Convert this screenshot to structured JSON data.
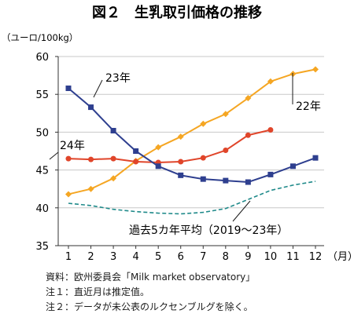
{
  "chart_data": {
    "type": "line",
    "title": "図２　生乳取引価格の推移",
    "ylabel": "（ユーロ/100kg）",
    "xunit": "（月）",
    "x": [
      1,
      2,
      3,
      4,
      5,
      6,
      7,
      8,
      9,
      10,
      11,
      12
    ],
    "ylim": [
      35,
      60
    ],
    "yticks": [
      35,
      40,
      45,
      50,
      55,
      60
    ],
    "grid": "horizontal",
    "series": [
      {
        "name": "23年",
        "color": "#2e3f8f",
        "marker": "square",
        "values": [
          55.8,
          53.3,
          50.2,
          47.5,
          45.5,
          44.3,
          43.8,
          43.6,
          43.4,
          44.4,
          45.5,
          46.6
        ]
      },
      {
        "name": "24年",
        "color": "#e0452a",
        "marker": "circle",
        "values": [
          46.5,
          46.4,
          46.5,
          46.1,
          46.0,
          46.1,
          46.6,
          47.6,
          49.6,
          50.3,
          null,
          null
        ]
      },
      {
        "name": "22年",
        "color": "#f5a623",
        "marker": "diamond",
        "values": [
          41.8,
          42.5,
          43.9,
          46.2,
          48.0,
          49.4,
          51.1,
          52.4,
          54.5,
          56.7,
          57.7,
          58.3
        ]
      },
      {
        "name": "過去5カ年平均（2019～23年）",
        "color": "#1f8a8a",
        "marker": "none",
        "dashed": true,
        "values": [
          40.6,
          40.3,
          39.8,
          39.5,
          39.3,
          39.2,
          39.4,
          39.9,
          41.1,
          42.3,
          43.0,
          43.5
        ]
      }
    ]
  },
  "notes": [
    "資料：欧州委員会「Milk market observatory」",
    "注１：直近月は推定值。",
    "注２：データが未公表のルクセンブルグを除く。"
  ]
}
